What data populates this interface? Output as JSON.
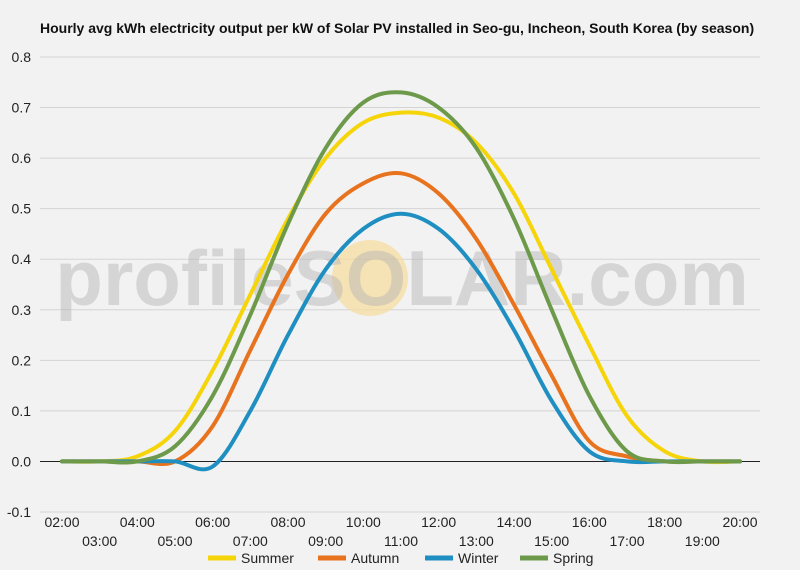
{
  "chart_data": {
    "type": "line",
    "title": "Hourly avg kWh electricity output per kW of Solar PV installed in Seo-gu, Incheon, South Korea (by season)",
    "xlabel": "",
    "ylabel": "",
    "x": [
      "02:00",
      "03:00",
      "04:00",
      "05:00",
      "06:00",
      "07:00",
      "08:00",
      "09:00",
      "10:00",
      "11:00",
      "12:00",
      "13:00",
      "14:00",
      "15:00",
      "16:00",
      "17:00",
      "18:00",
      "19:00",
      "20:00"
    ],
    "x_tick_labels_top": [
      "02:00",
      "04:00",
      "06:00",
      "08:00",
      "10:00",
      "12:00",
      "14:00",
      "16:00",
      "18:00",
      "20:00"
    ],
    "x_tick_labels_bottom": [
      "03:00",
      "05:00",
      "07:00",
      "09:00",
      "11:00",
      "13:00",
      "15:00",
      "17:00",
      "19:00"
    ],
    "y_ticks": [
      "0.8",
      "0.7",
      "0.6",
      "0.5",
      "0.4",
      "0.3",
      "0.2",
      "0.1",
      "0.0",
      "-0.1"
    ],
    "ylim": [
      -0.1,
      0.8
    ],
    "grid": true,
    "legend_position": "bottom",
    "series": [
      {
        "name": "Summer",
        "color": "#f5d50a",
        "values": [
          0.0,
          0.0,
          0.01,
          0.06,
          0.18,
          0.33,
          0.48,
          0.6,
          0.67,
          0.69,
          0.68,
          0.63,
          0.53,
          0.38,
          0.23,
          0.09,
          0.02,
          0.0,
          0.0
        ]
      },
      {
        "name": "Autumn",
        "color": "#e8731f",
        "values": [
          0.0,
          0.0,
          0.0,
          0.0,
          0.07,
          0.22,
          0.37,
          0.49,
          0.55,
          0.57,
          0.53,
          0.44,
          0.31,
          0.17,
          0.04,
          0.01,
          0.0,
          0.0,
          0.0
        ]
      },
      {
        "name": "Winter",
        "color": "#1f8fc2",
        "values": [
          0.0,
          0.0,
          0.0,
          0.0,
          -0.01,
          0.1,
          0.25,
          0.38,
          0.46,
          0.49,
          0.46,
          0.38,
          0.26,
          0.12,
          0.02,
          0.0,
          0.0,
          0.0,
          0.0
        ]
      },
      {
        "name": "Spring",
        "color": "#6d9a4a",
        "values": [
          0.0,
          0.0,
          0.0,
          0.03,
          0.13,
          0.29,
          0.47,
          0.62,
          0.71,
          0.73,
          0.7,
          0.62,
          0.48,
          0.3,
          0.13,
          0.02,
          0.0,
          0.0,
          0.0
        ]
      }
    ],
    "watermark": "profileSOLAR.com"
  }
}
